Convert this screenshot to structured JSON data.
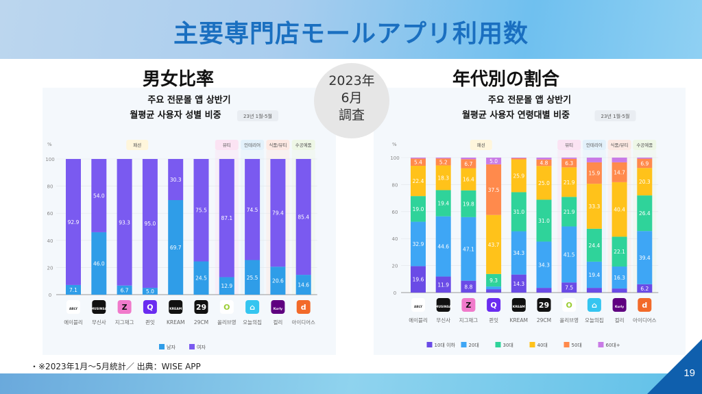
{
  "page": {
    "title": "主要専門店モールアプリ利用数",
    "left_heading": "男女比率",
    "right_heading": "年代別の割合",
    "badge_lines": [
      "2023年",
      "6月",
      "調査"
    ],
    "footnote": "・※2023年1月～5月統計／ 出典：WISE APP",
    "page_number": "19"
  },
  "apps": [
    "에이블리",
    "무신사",
    "지그재그",
    "퀸잇",
    "KREAM",
    "29CM",
    "올리브영",
    "오늘의집",
    "컬리",
    "아이디어스"
  ],
  "app_icons": [
    {
      "bg": "#ffffff",
      "fg": "#333",
      "glyph": "ABLY"
    },
    {
      "bg": "#111111",
      "fg": "#fff",
      "glyph": "MUSINSA"
    },
    {
      "bg": "#f07acb",
      "fg": "#111",
      "glyph": "Z"
    },
    {
      "bg": "#6a2cf0",
      "fg": "#fff",
      "glyph": "Q"
    },
    {
      "bg": "#111111",
      "fg": "#fff",
      "glyph": "KREAM"
    },
    {
      "bg": "#111111",
      "fg": "#fff",
      "glyph": "29"
    },
    {
      "bg": "#ffffff",
      "fg": "#9acd32",
      "glyph": "O"
    },
    {
      "bg": "#35c5f0",
      "fg": "#fff",
      "glyph": "⌂"
    },
    {
      "bg": "#5f0080",
      "fg": "#fff",
      "glyph": "Kurly"
    },
    {
      "bg": "#f26a2a",
      "fg": "#fff",
      "glyph": "d"
    }
  ],
  "categories": [
    {
      "label": "패션",
      "from": 0,
      "to": 5,
      "color": "#fff6dc"
    },
    {
      "label": "뷰티",
      "from": 6,
      "to": 6,
      "color": "#fbe3f3"
    },
    {
      "label": "인테리어",
      "from": 7,
      "to": 7,
      "color": "#e3f1fb"
    },
    {
      "label": "식품/뷰티",
      "from": 8,
      "to": 8,
      "color": "#fde9e3"
    },
    {
      "label": "수공예품",
      "from": 9,
      "to": 9,
      "color": "#eef7e6"
    }
  ],
  "chart_data": [
    {
      "type": "bar",
      "stacked": true,
      "title": "주요 전문몰 앱 상반기",
      "subtitle": "월평균 사용자 성별 비중",
      "period": "23년 1월-5월",
      "ylabel": "%",
      "ylim": [
        0,
        100
      ],
      "yticks": [
        0,
        20,
        40,
        60,
        80,
        100
      ],
      "grid": true,
      "legend": "bottom",
      "categories": [
        "에이블리",
        "무신사",
        "지그재그",
        "퀸잇",
        "KREAM",
        "29CM",
        "올리브영",
        "오늘의집",
        "컬리",
        "아이디어스"
      ],
      "series": [
        {
          "name": "남자",
          "color": "#2f9de8",
          "values": [
            7.1,
            46.0,
            6.7,
            5.0,
            69.7,
            24.5,
            12.9,
            25.5,
            20.6,
            14.6
          ]
        },
        {
          "name": "여자",
          "color": "#7a5af0",
          "values": [
            92.9,
            54.0,
            93.3,
            95.0,
            30.3,
            75.5,
            87.1,
            74.5,
            79.4,
            85.4
          ]
        }
      ]
    },
    {
      "type": "bar",
      "stacked": true,
      "title": "주요 전문몰 앱 상반기",
      "subtitle": "월평균 사용자 연령대별 비중",
      "period": "23년 1월-5월",
      "ylabel": "%",
      "ylim": [
        0,
        100
      ],
      "yticks": [
        0,
        20,
        40,
        60,
        80,
        100
      ],
      "grid": true,
      "legend": "bottom",
      "categories": [
        "에이블리",
        "무신사",
        "지그재그",
        "퀸잇",
        "KREAM",
        "29CM",
        "올리브영",
        "오늘의집",
        "컬리",
        "아이디어스"
      ],
      "series": [
        {
          "name": "10대 이하",
          "color": "#6a4be6",
          "values": [
            19.6,
            11.9,
            8.8,
            2.5,
            14.3,
            3.5,
            7.5,
            3.5,
            3.0,
            6.2
          ],
          "labels": [
            "19.6",
            "11.9",
            "8.8",
            "",
            "14.3",
            "",
            "7.5",
            "",
            "",
            "6.2"
          ]
        },
        {
          "name": "20대",
          "color": "#3ea6f5",
          "values": [
            32.9,
            44.6,
            47.1,
            2.0,
            34.3,
            34.3,
            41.5,
            19.4,
            16.3,
            39.4
          ],
          "labels": [
            "32.9",
            "44.6",
            "47.1",
            "",
            "34.3",
            "34.3",
            "41.5",
            "19.4",
            "16.3",
            "39.4"
          ]
        },
        {
          "name": "30대",
          "color": "#2fd39a",
          "values": [
            19.0,
            19.4,
            19.8,
            9.3,
            31.0,
            31.0,
            21.9,
            24.4,
            22.1,
            26.4
          ],
          "labels": [
            "19.0",
            "19.4",
            "19.8",
            "9.3",
            "31.0",
            "31.0",
            "21.9",
            "24.4",
            "22.1",
            "26.4"
          ]
        },
        {
          "name": "40대",
          "color": "#ffc21a",
          "values": [
            22.4,
            18.3,
            16.4,
            43.7,
            25.9,
            25.0,
            21.9,
            33.3,
            40.4,
            20.3
          ],
          "labels": [
            "22.4",
            "18.3",
            "16.4",
            "43.7",
            "25.9",
            "25.0",
            "21.9",
            "33.3",
            "40.4",
            "20.3"
          ]
        },
        {
          "name": "50대",
          "color": "#ff8a4c",
          "values": [
            5.4,
            5.2,
            6.7,
            37.5,
            1.0,
            4.8,
            6.3,
            15.9,
            14.7,
            6.9
          ],
          "labels": [
            "5.4",
            "5.2",
            "6.7",
            "37.5",
            "",
            "4.8",
            "6.3",
            "15.9",
            "14.7",
            "6.9"
          ]
        },
        {
          "name": "60대+",
          "color": "#c97be6",
          "values": [
            0.7,
            0.6,
            1.2,
            5.0,
            0.5,
            1.4,
            0.9,
            3.5,
            3.5,
            0.8
          ],
          "labels": [
            "",
            "",
            "",
            "5.0",
            "",
            "",
            "",
            "",
            "",
            ""
          ]
        }
      ]
    }
  ]
}
